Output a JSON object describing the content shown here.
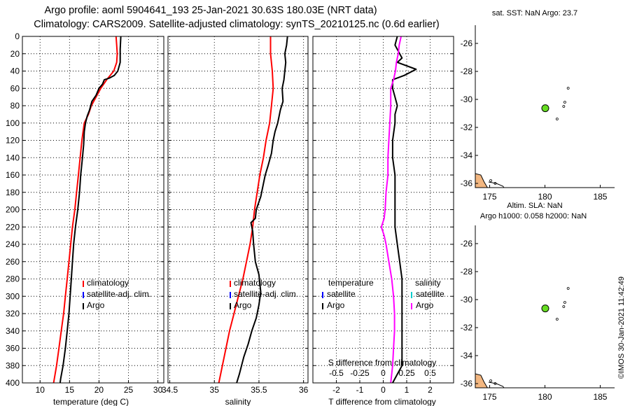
{
  "title": {
    "line1": "Argo profile: aoml 5904641_193 25-Jan-2021 30.63S 180.03E (NRT data)",
    "line2": "Climatology: CARS2009. Satellite-adjusted climatology: synTS_20210125.nc (0.6d earlier)"
  },
  "colors": {
    "climatology": "#ff0000",
    "satellite": "#0000ff",
    "argo": "#000000",
    "s_satellite": "#00cccc",
    "s_difference": "#ff00ff",
    "float_marker": "#66dd22",
    "land": "#f2b680"
  },
  "depth_axis": {
    "ticks": [
      "0",
      "20",
      "40",
      "60",
      "80",
      "100",
      "120",
      "140",
      "160",
      "180",
      "200",
      "220",
      "240",
      "260",
      "280",
      "300",
      "320",
      "340",
      "360",
      "380",
      "400"
    ]
  },
  "chart_data": [
    {
      "type": "line",
      "id": "temperature",
      "xlabel": "temperature (deg C)",
      "ylabel": "depth",
      "xlim": [
        7,
        31
      ],
      "ylim": [
        400,
        0
      ],
      "xticks": [
        "10",
        "15",
        "20",
        "25",
        "30"
      ],
      "legend": [
        "climatology",
        "satellite-adj. clim.",
        "Argo"
      ],
      "series": [
        {
          "name": "climatology",
          "color": "#ff0000",
          "points": [
            [
              22.9,
              0
            ],
            [
              23.0,
              10
            ],
            [
              23.1,
              20
            ],
            [
              23.0,
              30
            ],
            [
              22.5,
              40
            ],
            [
              21.3,
              50
            ],
            [
              20.3,
              60
            ],
            [
              19.5,
              70
            ],
            [
              18.7,
              80
            ],
            [
              18.2,
              90
            ],
            [
              17.5,
              100
            ],
            [
              17.1,
              120
            ],
            [
              16.8,
              140
            ],
            [
              16.5,
              160
            ],
            [
              16.2,
              180
            ],
            [
              15.9,
              200
            ],
            [
              15.5,
              220
            ],
            [
              15.2,
              240
            ],
            [
              14.9,
              260
            ],
            [
              14.6,
              280
            ],
            [
              14.3,
              300
            ],
            [
              14.0,
              320
            ],
            [
              13.6,
              340
            ],
            [
              13.2,
              360
            ],
            [
              12.8,
              380
            ],
            [
              12.3,
              400
            ]
          ]
        },
        {
          "name": "Argo",
          "color": "#000000",
          "points": [
            [
              23.7,
              0
            ],
            [
              23.6,
              15
            ],
            [
              23.6,
              30
            ],
            [
              23.2,
              40
            ],
            [
              22.6,
              45
            ],
            [
              21.8,
              48
            ],
            [
              20.9,
              50
            ],
            [
              20.6,
              55
            ],
            [
              20.0,
              60
            ],
            [
              19.5,
              68
            ],
            [
              18.8,
              75
            ],
            [
              18.4,
              85
            ],
            [
              18.0,
              92
            ],
            [
              17.7,
              100
            ],
            [
              17.5,
              110
            ],
            [
              17.4,
              125
            ],
            [
              17.2,
              140
            ],
            [
              16.9,
              160
            ],
            [
              16.7,
              180
            ],
            [
              16.4,
              200
            ],
            [
              16.0,
              220
            ],
            [
              15.7,
              240
            ],
            [
              15.5,
              260
            ],
            [
              15.3,
              280
            ],
            [
              15.1,
              300
            ],
            [
              14.9,
              320
            ],
            [
              14.6,
              340
            ],
            [
              14.3,
              360
            ],
            [
              13.9,
              380
            ],
            [
              13.5,
              395
            ],
            [
              13.4,
              400
            ]
          ]
        }
      ]
    },
    {
      "type": "line",
      "id": "salinity",
      "xlabel": "salinity",
      "ylabel": "depth",
      "xlim": [
        34.48,
        36.05
      ],
      "ylim": [
        400,
        0
      ],
      "xticks": [
        "34.5",
        "35",
        "35.5",
        "36"
      ],
      "legend": [
        "climatology",
        "satellite-adj. clim.",
        "Argo"
      ],
      "series": [
        {
          "name": "climatology",
          "color": "#ff0000",
          "points": [
            [
              35.63,
              0
            ],
            [
              35.63,
              20
            ],
            [
              35.65,
              40
            ],
            [
              35.66,
              60
            ],
            [
              35.64,
              80
            ],
            [
              35.62,
              100
            ],
            [
              35.58,
              120
            ],
            [
              35.55,
              140
            ],
            [
              35.51,
              160
            ],
            [
              35.48,
              180
            ],
            [
              35.45,
              200
            ],
            [
              35.43,
              220
            ],
            [
              35.4,
              240
            ],
            [
              35.36,
              260
            ],
            [
              35.32,
              280
            ],
            [
              35.27,
              300
            ],
            [
              35.22,
              320
            ],
            [
              35.17,
              340
            ],
            [
              35.13,
              360
            ],
            [
              35.09,
              380
            ],
            [
              35.05,
              400
            ]
          ]
        },
        {
          "name": "Argo",
          "color": "#000000",
          "points": [
            [
              35.82,
              0
            ],
            [
              35.81,
              10
            ],
            [
              35.79,
              20
            ],
            [
              35.8,
              30
            ],
            [
              35.78,
              50
            ],
            [
              35.76,
              60
            ],
            [
              35.77,
              75
            ],
            [
              35.74,
              85
            ],
            [
              35.71,
              100
            ],
            [
              35.68,
              110
            ],
            [
              35.66,
              120
            ],
            [
              35.64,
              135
            ],
            [
              35.6,
              150
            ],
            [
              35.57,
              160
            ],
            [
              35.55,
              170
            ],
            [
              35.52,
              185
            ],
            [
              35.47,
              200
            ],
            [
              35.46,
              210
            ],
            [
              35.41,
              215
            ],
            [
              35.43,
              225
            ],
            [
              35.44,
              240
            ],
            [
              35.46,
              260
            ],
            [
              35.5,
              275
            ],
            [
              35.52,
              295
            ],
            [
              35.5,
              310
            ],
            [
              35.47,
              325
            ],
            [
              35.42,
              340
            ],
            [
              35.38,
              355
            ],
            [
              35.33,
              370
            ],
            [
              35.28,
              390
            ],
            [
              35.25,
              400
            ]
          ]
        }
      ]
    },
    {
      "type": "line",
      "id": "difference",
      "xlabel": "T difference from climatology",
      "x2label": "S difference from climatology",
      "ylabel": "depth",
      "xlim": [
        -3,
        3
      ],
      "ylim": [
        400,
        0
      ],
      "xticks": [
        "-2",
        "-1",
        "0",
        "1",
        "2"
      ],
      "x2lim": [
        -0.75,
        0.75
      ],
      "x2ticks": [
        "-0.5",
        "-0.25",
        "0",
        "0.25",
        "0.5"
      ],
      "legend_temperature": {
        "title": "temperature",
        "items": [
          "satellite",
          "Argo"
        ]
      },
      "legend_salinity": {
        "title": "salinity",
        "items": [
          "satellite",
          "Argo"
        ]
      },
      "series": [
        {
          "name": "T Argo minus climatology",
          "color": "#000000",
          "points": [
            [
              0.6,
              0
            ],
            [
              0.5,
              10
            ],
            [
              0.7,
              20
            ],
            [
              0.8,
              25
            ],
            [
              0.6,
              30
            ],
            [
              1.4,
              38
            ],
            [
              0.9,
              45
            ],
            [
              0.4,
              50
            ],
            [
              0.4,
              60
            ],
            [
              0.5,
              70
            ],
            [
              0.6,
              80
            ],
            [
              0.5,
              90
            ],
            [
              0.5,
              100
            ],
            [
              0.4,
              120
            ],
            [
              0.4,
              140
            ],
            [
              0.5,
              160
            ],
            [
              0.5,
              180
            ],
            [
              0.5,
              200
            ],
            [
              0.5,
              220
            ],
            [
              0.6,
              240
            ],
            [
              0.7,
              260
            ],
            [
              0.8,
              280
            ],
            [
              0.8,
              300
            ],
            [
              0.8,
              320
            ],
            [
              0.8,
              340
            ],
            [
              0.8,
              360
            ],
            [
              0.8,
              380
            ],
            [
              0.6,
              390
            ],
            [
              0.4,
              400
            ]
          ]
        },
        {
          "name": "S Argo minus climatology",
          "color": "#ff00ff",
          "axis": "x2",
          "points": [
            [
              0.19,
              0
            ],
            [
              0.17,
              10
            ],
            [
              0.16,
              20
            ],
            [
              0.14,
              30
            ],
            [
              0.13,
              40
            ],
            [
              0.11,
              50
            ],
            [
              0.08,
              60
            ],
            [
              0.08,
              80
            ],
            [
              0.07,
              100
            ],
            [
              0.06,
              120
            ],
            [
              0.05,
              140
            ],
            [
              0.05,
              160
            ],
            [
              0.03,
              180
            ],
            [
              0.02,
              200
            ],
            [
              0.01,
              210
            ],
            [
              -0.02,
              220
            ],
            [
              0.01,
              230
            ],
            [
              0.03,
              240
            ],
            [
              0.06,
              260
            ],
            [
              0.09,
              280
            ],
            [
              0.11,
              300
            ],
            [
              0.12,
              320
            ],
            [
              0.12,
              340
            ],
            [
              0.11,
              360
            ],
            [
              0.1,
              380
            ],
            [
              0.08,
              400
            ]
          ]
        }
      ]
    }
  ],
  "maps": [
    {
      "id": "sst-map",
      "title": "sat. SST: NaN Argo: 23.7",
      "lat_ticks": [
        "-26",
        "-28",
        "-30",
        "-32",
        "-34",
        "-36"
      ],
      "lon_ticks": [
        "175",
        "180",
        "185"
      ],
      "float": {
        "lon": 180.03,
        "lat": -30.63
      }
    },
    {
      "id": "sla-map",
      "title1": "Altim. SLA: NaN",
      "title2": "Argo h1000: 0.058 h2000: NaN",
      "lat_ticks": [
        "-26",
        "-28",
        "-30",
        "-32",
        "-34",
        "-36"
      ],
      "lon_ticks": [
        "175",
        "180",
        "185"
      ],
      "float": {
        "lon": 180.03,
        "lat": -30.63
      }
    }
  ],
  "credit": "©IMOS 30-Jan-2021 11:42:49"
}
